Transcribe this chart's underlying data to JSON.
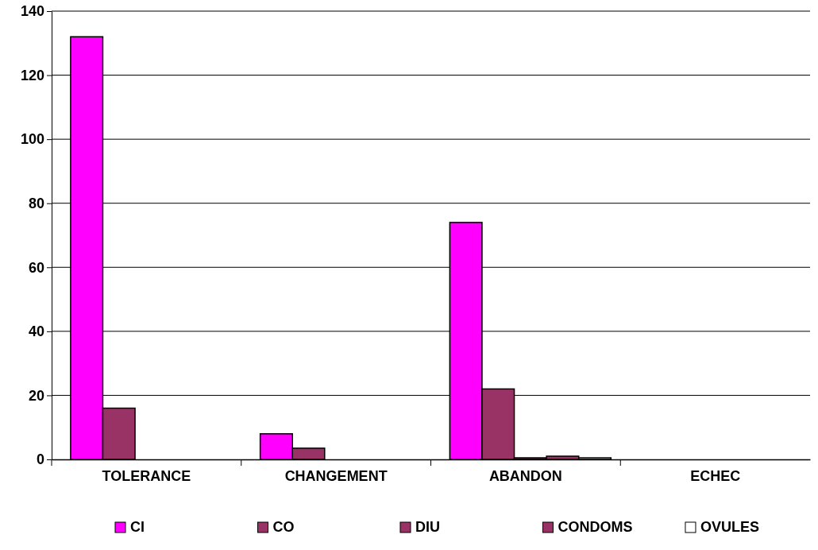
{
  "chart_data": {
    "type": "bar",
    "categories": [
      "TOLERANCE",
      "CHANGEMENT",
      "ABANDON",
      "ECHEC"
    ],
    "series": [
      {
        "name": "CI",
        "color": "#ff00ff",
        "values": [
          132,
          8,
          74,
          0
        ]
      },
      {
        "name": "CO",
        "color": "#993366",
        "values": [
          16,
          3.5,
          22,
          0
        ]
      },
      {
        "name": "DIU",
        "color": "#993366",
        "values": [
          0,
          0,
          0.5,
          0
        ]
      },
      {
        "name": "CONDOMS",
        "color": "#993366",
        "values": [
          0,
          0,
          1,
          0
        ]
      },
      {
        "name": "OVULES",
        "color": "#ffffff",
        "values": [
          0,
          0,
          0.5,
          0
        ]
      }
    ],
    "ylim": [
      0,
      140
    ],
    "yticks": [
      0,
      20,
      40,
      60,
      80,
      100,
      120,
      140
    ],
    "grid": "y",
    "legend": "bottom"
  }
}
